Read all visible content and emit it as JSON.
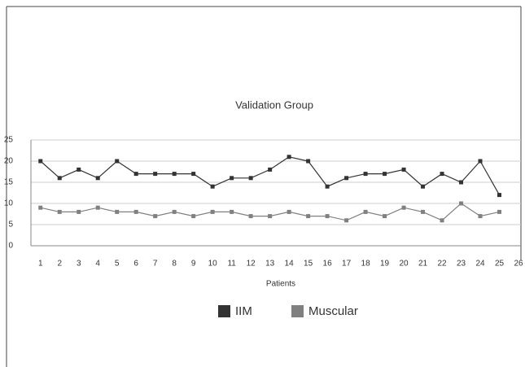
{
  "chart_data": {
    "type": "line",
    "title": "Validation Group",
    "xlabel": "Patients",
    "x": [
      1,
      2,
      3,
      4,
      5,
      6,
      7,
      8,
      9,
      10,
      11,
      12,
      13,
      14,
      15,
      16,
      17,
      18,
      19,
      20,
      21,
      22,
      23,
      24,
      25
    ],
    "series": [
      {
        "name": "IIM",
        "color": "#333333",
        "values": [
          20,
          16,
          18,
          16,
          20,
          17,
          17,
          17,
          17,
          14,
          16,
          16,
          18,
          21,
          20,
          14,
          16,
          17,
          17,
          18,
          14,
          17,
          15,
          20,
          12
        ]
      },
      {
        "name": "Muscular",
        "color": "#808080",
        "values": [
          9,
          8,
          8,
          9,
          8,
          8,
          7,
          8,
          7,
          8,
          8,
          7,
          7,
          8,
          7,
          7,
          6,
          8,
          7,
          9,
          8,
          6,
          10,
          7,
          8
        ]
      }
    ],
    "xlim": [
      0.5,
      26
    ],
    "xticks": [
      1,
      2,
      3,
      4,
      5,
      6,
      7,
      8,
      9,
      10,
      11,
      12,
      13,
      14,
      15,
      16,
      17,
      18,
      19,
      20,
      21,
      22,
      23,
      24,
      25,
      26
    ],
    "ylim": [
      0,
      25
    ],
    "yticks": [
      0,
      5,
      10,
      15,
      20,
      25
    ],
    "grid": true,
    "legend": "bottom"
  }
}
